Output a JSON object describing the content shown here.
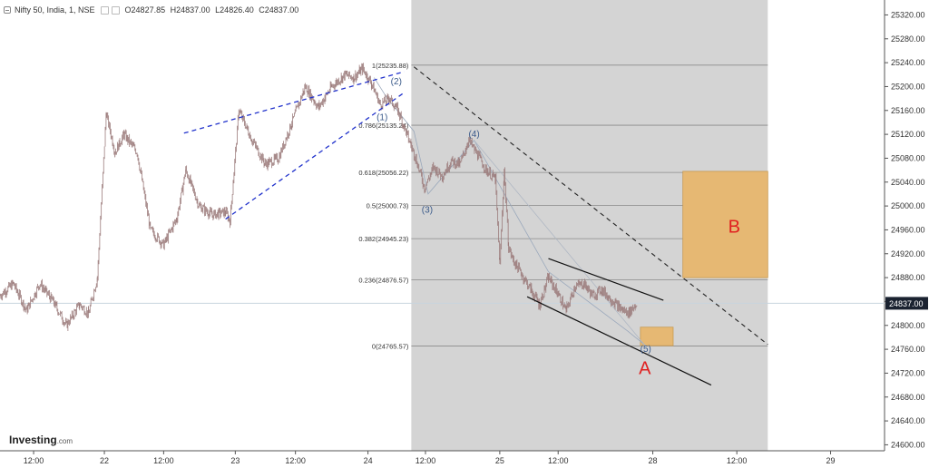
{
  "header": {
    "symbol": "Nifty 50, India, 1, NSE",
    "open": "O24827.85",
    "high": "H24837.00",
    "low": "L24826.40",
    "close": "C24837.00"
  },
  "brand": {
    "name": "Investing",
    "suffix": ".com"
  },
  "colors": {
    "candle": "#9c7c7c",
    "shade": "#d4d4d4",
    "box": "#e6b873",
    "trend_blue": "#2233cc",
    "label_red": "#e02020",
    "wave_label": "#3a5a8a",
    "price_tag": "#1a2230"
  },
  "chart_data": {
    "type": "candlestick",
    "instrument": "Nifty 50, India, 1, NSE",
    "y_range": [
      24590,
      25345
    ],
    "y_ticks": [
      25320.0,
      25280.0,
      25240.0,
      25200.0,
      25160.0,
      25120.0,
      25080.0,
      25040.0,
      25000.0,
      24960.0,
      24920.0,
      24880.0,
      24840.0,
      24800.0,
      24760.0,
      24720.0,
      24680.0,
      24640.0,
      24600.0
    ],
    "x_axis": {
      "range": [
        0,
        100
      ],
      "ticks": [
        {
          "label": "12:00",
          "x": 3.8
        },
        {
          "label": "22",
          "x": 11.8
        },
        {
          "label": "12:00",
          "x": 18.5
        },
        {
          "label": "23",
          "x": 26.6
        },
        {
          "label": "12:00",
          "x": 33.4
        },
        {
          "label": "24",
          "x": 41.6
        },
        {
          "label": "12:00",
          "x": 48.1
        },
        {
          "label": "25",
          "x": 56.5
        },
        {
          "label": "12:00",
          "x": 63.1
        },
        {
          "label": "28",
          "x": 73.8
        },
        {
          "label": "12:00",
          "x": 83.3
        },
        {
          "label": "29",
          "x": 93.9
        }
      ]
    },
    "price_path": [
      [
        0,
        24850
      ],
      [
        1.5,
        24870
      ],
      [
        3,
        24825
      ],
      [
        4.5,
        24870
      ],
      [
        6,
        24840
      ],
      [
        7.5,
        24800
      ],
      [
        9,
        24835
      ],
      [
        10,
        24820
      ],
      [
        11,
        24880
      ],
      [
        12,
        25155
      ],
      [
        13,
        25090
      ],
      [
        14,
        25120
      ],
      [
        15.5,
        25090
      ],
      [
        17,
        24960
      ],
      [
        18.5,
        24935
      ],
      [
        20,
        24980
      ],
      [
        21,
        25060
      ],
      [
        22.5,
        25000
      ],
      [
        24,
        24985
      ],
      [
        25.5,
        24990
      ],
      [
        26,
        24975
      ],
      [
        27,
        25160
      ],
      [
        28.5,
        25110
      ],
      [
        30,
        25070
      ],
      [
        31.5,
        25080
      ],
      [
        33,
        25140
      ],
      [
        34.5,
        25200
      ],
      [
        36,
        25165
      ],
      [
        37.5,
        25200
      ],
      [
        39,
        25220
      ],
      [
        40,
        25215
      ],
      [
        41,
        25230
      ],
      [
        42,
        25205
      ],
      [
        43,
        25170
      ],
      [
        44,
        25180
      ],
      [
        45,
        25160
      ],
      [
        46,
        25120
      ],
      [
        47,
        25080
      ],
      [
        48,
        25030
      ],
      [
        49,
        25065
      ],
      [
        50,
        25050
      ],
      [
        51,
        25075
      ],
      [
        52,
        25070
      ],
      [
        53,
        25110
      ],
      [
        54,
        25085
      ],
      [
        55,
        25060
      ],
      [
        56,
        25045
      ],
      [
        56.5,
        24900
      ],
      [
        57,
        25060
      ],
      [
        57.5,
        24930
      ],
      [
        58,
        24910
      ],
      [
        59,
        24885
      ],
      [
        60,
        24860
      ],
      [
        61,
        24835
      ],
      [
        62,
        24880
      ],
      [
        63,
        24855
      ],
      [
        64,
        24825
      ],
      [
        65,
        24865
      ],
      [
        66,
        24870
      ],
      [
        67,
        24850
      ],
      [
        68,
        24860
      ],
      [
        69,
        24845
      ],
      [
        70,
        24830
      ],
      [
        71,
        24820
      ],
      [
        72,
        24837
      ]
    ],
    "fib_levels": [
      {
        "ratio": "1",
        "value": 25235.88
      },
      {
        "ratio": "0.786",
        "value": 25135.24
      },
      {
        "ratio": "0.618",
        "value": 25056.22
      },
      {
        "ratio": "0.5",
        "value": 25000.73
      },
      {
        "ratio": "0.382",
        "value": 24945.23
      },
      {
        "ratio": "0.236",
        "value": 24876.57
      },
      {
        "ratio": "0",
        "value": 24765.57
      }
    ],
    "fib_labels": [
      "1(25235.88)",
      "0.786(25135.24)",
      "0.618(25056.22)",
      "0.5(25000.73)",
      "0.382(24945.23)",
      "0.236(24876.57)",
      "0(24765.57)"
    ],
    "fib_x_range": [
      46.5,
      86.8
    ],
    "shaded_region": {
      "x": [
        46.5,
        86.8
      ]
    },
    "current_price": {
      "value": 24837.0,
      "label": "24837.00"
    },
    "wave_labels": [
      {
        "text": "(1)",
        "x": 43.2,
        "y": 25150
      },
      {
        "text": "(2)",
        "x": 44.8,
        "y": 25210
      },
      {
        "text": "(3)",
        "x": 48.3,
        "y": 24995
      },
      {
        "text": "(4)",
        "x": 53.6,
        "y": 25122
      },
      {
        "text": "(5)",
        "x": 73,
        "y": 24762
      }
    ],
    "blue_channel": [
      {
        "from": [
          20.8,
          25122
        ],
        "to": [
          45.7,
          25225
        ]
      },
      {
        "from": [
          25.5,
          24978
        ],
        "to": [
          45.7,
          25190
        ]
      }
    ],
    "dashed_trend": {
      "from": [
        46.8,
        25233
      ],
      "to": [
        86.8,
        24768
      ]
    },
    "grey_path": [
      [
        42.3,
        25215
      ],
      [
        43.7,
        25182
      ],
      [
        46.8,
        25125
      ],
      [
        48.4,
        25020
      ],
      [
        53.6,
        25110
      ],
      [
        62,
        24890
      ],
      [
        71,
        24790
      ],
      [
        73,
        24766
      ]
    ],
    "gray_projection": {
      "from": [
        53.6,
        25110
      ],
      "to": [
        73,
        24765
      ]
    },
    "wedge_channel": [
      {
        "from": [
          62,
          24912
        ],
        "to": [
          75,
          24842
        ]
      },
      {
        "from": [
          59.6,
          24848
        ],
        "to": [
          80.4,
          24700
        ]
      }
    ],
    "zones": [
      {
        "label": "B",
        "x": [
          77.2,
          86.8
        ],
        "y": [
          24880,
          25058
        ]
      },
      {
        "label": "",
        "x": [
          72.4,
          76.1
        ],
        "y": [
          24766,
          24797
        ]
      }
    ],
    "zone_labels": [
      {
        "text": "B",
        "x": 83,
        "y": 24955
      },
      {
        "text": "A",
        "x": 72.9,
        "y": 24718
      }
    ]
  }
}
